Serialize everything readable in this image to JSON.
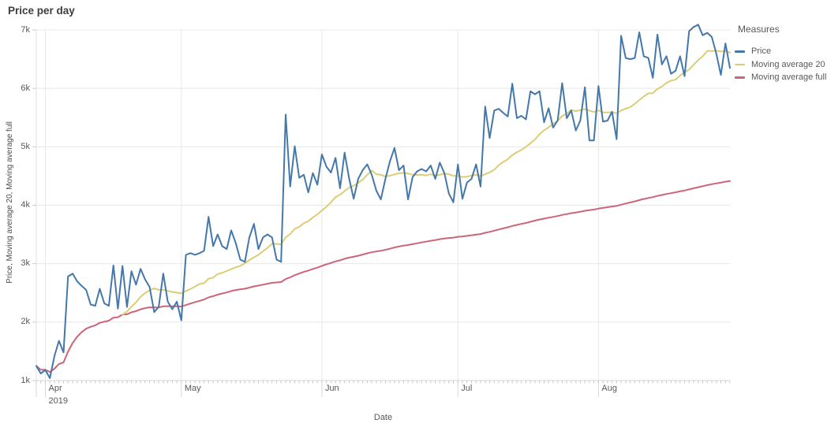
{
  "title": "Price per day",
  "legend": {
    "title": "Measures"
  },
  "x_axis": {
    "title": "Date",
    "year_label": "2019"
  },
  "y_axis": {
    "title": "Price, Moving average 20, Moving average full"
  },
  "chart_data": {
    "type": "line",
    "title": "Price per day",
    "xlabel": "Date",
    "ylabel": "Price, Moving average 20, Moving average full",
    "x_unit": "day",
    "x_range": [
      "2019-03-30",
      "2019-08-30"
    ],
    "x_tick_labels": [
      "Apr",
      "May",
      "Jun",
      "Jul",
      "Aug"
    ],
    "x_month_day_offsets": [
      2,
      32,
      63,
      93,
      124
    ],
    "x_year_label": "2019",
    "y_tick_labels": [
      "1k",
      "2k",
      "3k",
      "4k",
      "5k",
      "6k",
      "7k"
    ],
    "y_tick_values": [
      1000,
      2000,
      3000,
      4000,
      5000,
      6000,
      7000
    ],
    "ylim": [
      1000,
      7000
    ],
    "grid": true,
    "legend_title": "Measures",
    "legend_position": "top-right",
    "series": [
      {
        "name": "Price",
        "color": "#4477aa",
        "values": [
          1250,
          1120,
          1180,
          1040,
          1420,
          1680,
          1480,
          2780,
          2830,
          2700,
          2620,
          2550,
          2300,
          2280,
          2570,
          2320,
          2280,
          2970,
          2230,
          2960,
          2260,
          2870,
          2640,
          2910,
          2730,
          2600,
          2170,
          2260,
          2830,
          2350,
          2220,
          2350,
          2030,
          3150,
          3180,
          3150,
          3180,
          3220,
          3800,
          3300,
          3500,
          3300,
          3250,
          3570,
          3350,
          3070,
          3030,
          3450,
          3680,
          3250,
          3450,
          3500,
          3450,
          3070,
          3030,
          5550,
          4320,
          5010,
          4470,
          4520,
          4220,
          4550,
          4350,
          4870,
          4660,
          4560,
          4810,
          4290,
          4900,
          4460,
          4110,
          4450,
          4600,
          4700,
          4520,
          4250,
          4100,
          4450,
          4750,
          4980,
          4600,
          4680,
          4100,
          4480,
          4580,
          4620,
          4580,
          4680,
          4450,
          4730,
          4550,
          4200,
          4050,
          4700,
          4110,
          4390,
          4450,
          4700,
          4320,
          5690,
          5150,
          5620,
          5650,
          5580,
          5520,
          6080,
          5490,
          5530,
          5470,
          5950,
          5900,
          5950,
          5420,
          5660,
          5330,
          5450,
          6090,
          5490,
          5620,
          5280,
          5450,
          6020,
          5110,
          5110,
          6040,
          5430,
          5450,
          5600,
          5130,
          6900,
          6520,
          6500,
          6520,
          6960,
          6550,
          6520,
          6180,
          6920,
          6410,
          6550,
          6250,
          6300,
          6550,
          6210,
          6980,
          7050,
          7090,
          6910,
          6950,
          6880,
          6590,
          6230,
          6770,
          6350
        ]
      },
      {
        "name": "Moving average 20",
        "color": "#ddcc77",
        "derived_from": "Price",
        "derivation": "moving_average",
        "window": 20
      },
      {
        "name": "Moving average full",
        "color": "#cc6677",
        "derived_from": "Price",
        "derivation": "cumulative_average"
      }
    ]
  }
}
